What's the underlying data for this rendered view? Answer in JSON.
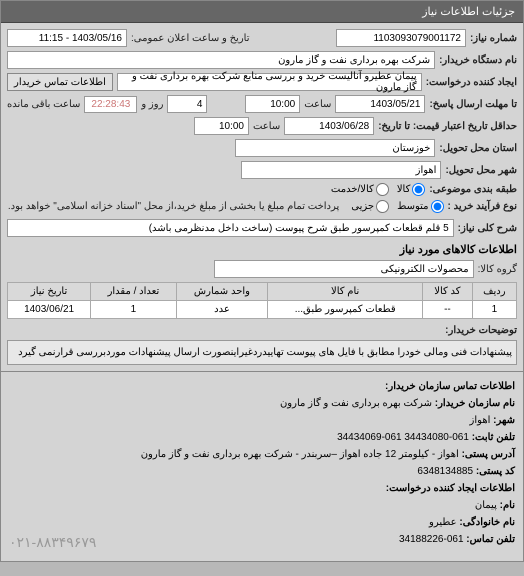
{
  "header": "جزئیات اطلاعات نیاز",
  "request_no_label": "شماره نیاز:",
  "request_no": "1103093079001172",
  "announce_label": "تاریخ و ساعت اعلان عمومی:",
  "announce_value": "1403/05/16 - 11:15",
  "org_label": "نام دستگاه خریدار:",
  "org_value": "شرکت بهره برداری نفت و گاز مارون",
  "creator_label": "ایجاد کننده درخواست:",
  "creator_value": "پیمان عطیرو آنالیست خرید و بررسی منابع شرکت بهره برداری نفت و گاز مارون",
  "contact_btn": "اطلاعات تماس خریدار",
  "deadline_label": "تا مهلت ارسال پاسخ:",
  "deadline_date": "1403/05/21",
  "deadline_hour_label": "ساعت",
  "deadline_hour": "10:00",
  "remain_days": "4",
  "remain_days_label": "روز و",
  "remain_time": "22:28:43",
  "remain_suffix": "ساعت باقی مانده",
  "price_from_label": "حداقل تاریخ اعتبار قیمت: تا تاریخ:",
  "price_to_date": "1403/06/28",
  "price_to_hour": "10:00",
  "delivery_state_label": "استان محل تحویل:",
  "delivery_state": "خوزستان",
  "delivery_city_label": "شهر محل تحویل:",
  "delivery_city": "اهواز",
  "category_label": "طبقه بندی موضوعی:",
  "cat_kala": "کالا",
  "cat_khedmat": "کالا/خدمت",
  "subtype_label": "نوع فرآیند خرید :",
  "sub_medium": "متوسط",
  "sub_partial": "جزیی",
  "purchase_note": "پرداخت تمام مبلغ یا بخشی از مبلغ خرید،از محل \"اسناد خزانه اسلامی\" خواهد بود.",
  "need_title_label": "شرح کلی نیاز:",
  "need_title": "5 قلم قطعات کمپرسور طبق شرح پیوست (ساخت داخل مدنظرمی باشد)",
  "goods_section": "اطلاعات کالاهای مورد نیاز",
  "goods_group_label": "گروه کالا:",
  "goods_group": "محصولات الکترونیکی",
  "table": {
    "headers": [
      "ردیف",
      "کد کالا",
      "نام کالا",
      "واحد شمارش",
      "تعداد / مقدار",
      "تاریخ نیاز"
    ],
    "rows": [
      [
        "1",
        "--",
        "قطعات کمپرسور طبق...",
        "عدد",
        "1",
        "1403/06/21"
      ]
    ]
  },
  "buyer_note_label": "توضیحات خریدار:",
  "buyer_note": "پیشنهادات فنی ومالی خودرا مطابق با فایل های پیوست تهاییدردغیراینصورت ارسال پیشنهادات موردبررسی قرارنمی گیرد",
  "contact": {
    "title": "اطلاعات تماس سازمان خریدار:",
    "org_label": "نام سازمان خریدار:",
    "org": "شرکت بهره برداری نفت و گاز مارون",
    "city_label": "شهر:",
    "city": "اهواز",
    "tel_label": "تلفن ثابت:",
    "tel": "061-34434080   061-34434069",
    "addr_label": "آدرس پستی:",
    "addr": "اهواز - کیلومتر 12 جاده اهواز –سربندر - شرکت بهره برداری نفت و گاز مارون",
    "zip_label": "کد پستی:",
    "zip": "6348134885",
    "creator_title": "اطلاعات ایجاد کننده درخواست:",
    "name_label": "نام:",
    "name": "پیمان",
    "family_label": "نام خانوادگی:",
    "family": "عطیرو",
    "phone_label": "تلفن تماس:",
    "phone": "061-34188226",
    "footer_phone": "۰۲۱-۸۸۳۴۹۶۷۹"
  }
}
